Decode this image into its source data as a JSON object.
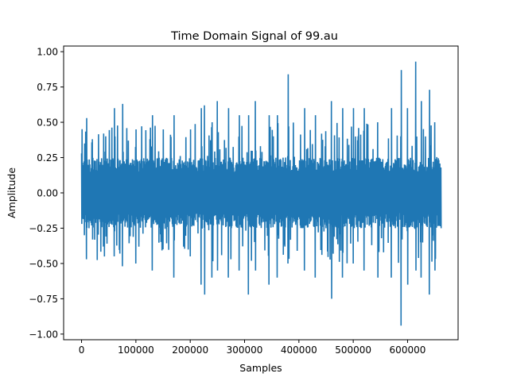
{
  "chart_data": {
    "type": "line",
    "title": "Time Domain Signal of 99.au",
    "xlabel": "Samples",
    "ylabel": "Amplitude",
    "xlim": [
      -33000,
      693000
    ],
    "ylim": [
      -1.04,
      1.04
    ],
    "x_ticks": [
      0,
      100000,
      200000,
      300000,
      400000,
      500000,
      600000
    ],
    "x_tick_labels": [
      "0",
      "100000",
      "200000",
      "300000",
      "400000",
      "500000",
      "600000"
    ],
    "y_ticks": [
      1.0,
      0.75,
      0.5,
      0.25,
      0.0,
      -0.25,
      -0.5,
      -0.75,
      -1.0
    ],
    "y_tick_labels": [
      "1.00",
      "0.75",
      "0.50",
      "0.25",
      "0.00",
      "−0.25",
      "−0.50",
      "−0.75",
      "−1.00"
    ],
    "grid": false,
    "legend": "none",
    "series": [
      {
        "color": "#1f77b4",
        "sample_count": 661794,
        "typical_envelope": 0.25,
        "envelope": [
          {
            "x": 0,
            "max": 0.28,
            "min": -0.22
          },
          {
            "x": 5000,
            "max": 0.35,
            "min": -0.3
          },
          {
            "x": 9000,
            "max": 0.53,
            "min": -0.47
          },
          {
            "x": 20000,
            "max": 0.38,
            "min": -0.33
          },
          {
            "x": 40000,
            "max": 0.42,
            "min": -0.38
          },
          {
            "x": 60000,
            "max": 0.6,
            "min": -0.45
          },
          {
            "x": 75000,
            "max": 0.63,
            "min": -0.52
          },
          {
            "x": 100000,
            "max": 0.45,
            "min": -0.5
          },
          {
            "x": 130000,
            "max": 0.55,
            "min": -0.55
          },
          {
            "x": 150000,
            "max": 0.45,
            "min": -0.4
          },
          {
            "x": 170000,
            "max": 0.55,
            "min": -0.6
          },
          {
            "x": 200000,
            "max": 0.45,
            "min": -0.45
          },
          {
            "x": 220000,
            "max": 0.6,
            "min": -0.65
          },
          {
            "x": 226000,
            "max": 0.62,
            "min": -0.72
          },
          {
            "x": 240000,
            "max": 0.5,
            "min": -0.6
          },
          {
            "x": 250000,
            "max": 0.65,
            "min": -0.55
          },
          {
            "x": 270000,
            "max": 0.6,
            "min": -0.6
          },
          {
            "x": 290000,
            "max": 0.55,
            "min": -0.55
          },
          {
            "x": 307000,
            "max": 0.55,
            "min": -0.72
          },
          {
            "x": 320000,
            "max": 0.65,
            "min": -0.55
          },
          {
            "x": 345000,
            "max": 0.55,
            "min": -0.65
          },
          {
            "x": 360000,
            "max": 0.55,
            "min": -0.6
          },
          {
            "x": 380000,
            "max": 0.84,
            "min": -0.5
          },
          {
            "x": 410000,
            "max": 0.6,
            "min": -0.55
          },
          {
            "x": 430000,
            "max": 0.55,
            "min": -0.6
          },
          {
            "x": 460000,
            "max": 0.65,
            "min": -0.75
          },
          {
            "x": 480000,
            "max": 0.6,
            "min": -0.6
          },
          {
            "x": 500000,
            "max": 0.6,
            "min": -0.5
          },
          {
            "x": 520000,
            "max": 0.6,
            "min": -0.55
          },
          {
            "x": 545000,
            "max": 0.5,
            "min": -0.6
          },
          {
            "x": 570000,
            "max": 0.6,
            "min": -0.6
          },
          {
            "x": 588000,
            "max": 0.87,
            "min": -0.94
          },
          {
            "x": 600000,
            "max": 0.6,
            "min": -0.65
          },
          {
            "x": 615000,
            "max": 0.93,
            "min": -0.55
          },
          {
            "x": 625000,
            "max": 0.65,
            "min": -0.6
          },
          {
            "x": 640000,
            "max": 0.73,
            "min": -0.72
          },
          {
            "x": 650000,
            "max": 0.5,
            "min": -0.55
          },
          {
            "x": 661794,
            "max": 0.3,
            "min": -0.25
          }
        ]
      }
    ]
  }
}
